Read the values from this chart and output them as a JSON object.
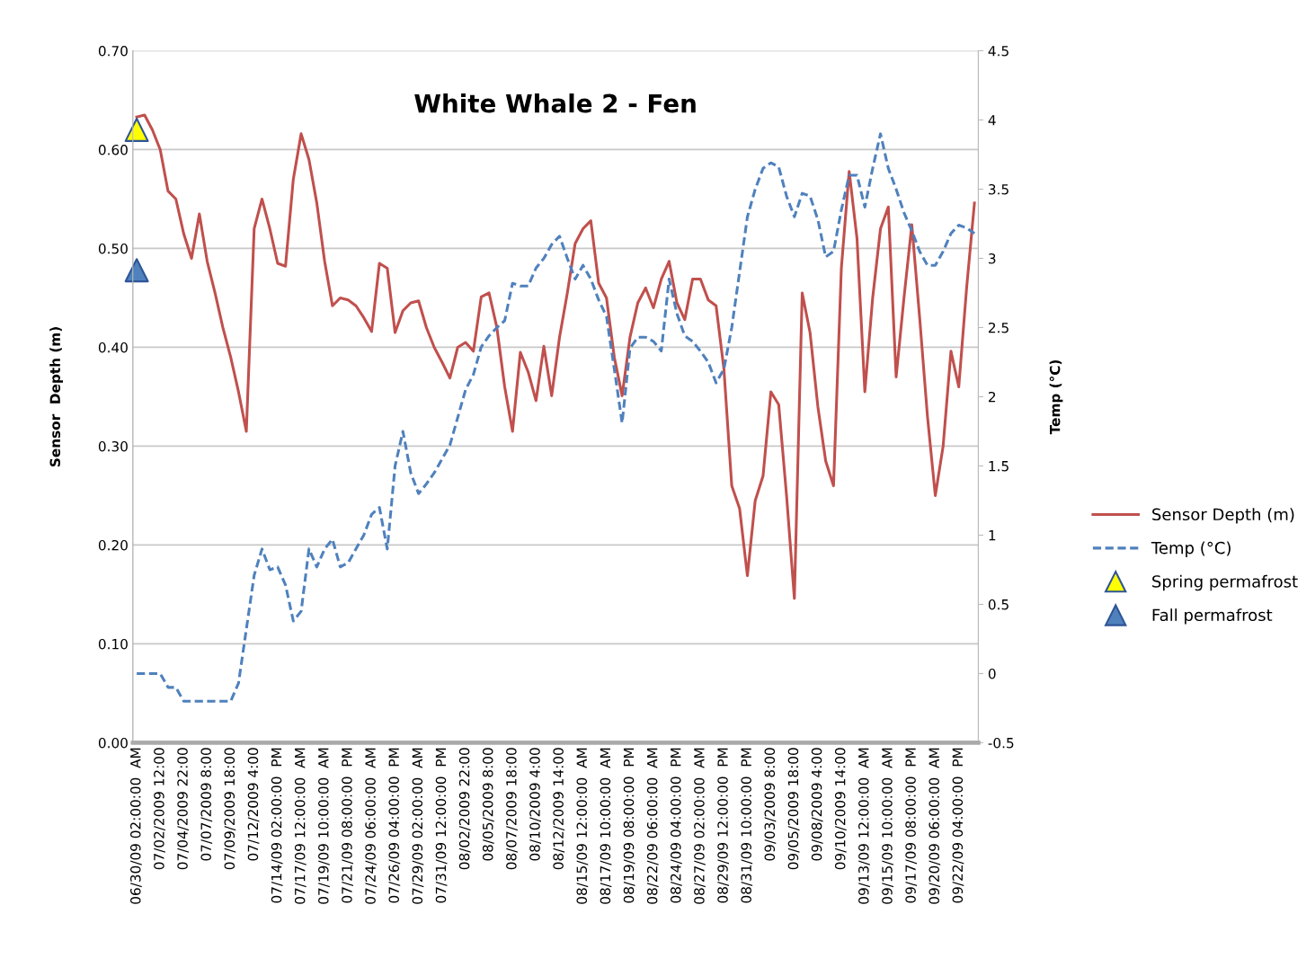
{
  "chart_data": {
    "type": "line",
    "title": "White Whale 2 - Fen",
    "ylabel": "Sensor  Depth (m)",
    "y2label": "Temp (°C)",
    "categories": [
      "06/30/09 02:00:00  AM",
      null,
      null,
      "07/02/2009 12:00",
      null,
      null,
      "07/04/2009 22:00",
      null,
      null,
      "07/07/2009 8:00",
      null,
      null,
      "07/09/2009 18:00",
      null,
      null,
      "07/12/2009 4:00",
      null,
      null,
      "07/14/09 02:00:00  PM",
      null,
      null,
      "07/17/09 12:00:00  AM",
      null,
      null,
      "07/19/09 10:00:00  AM",
      null,
      null,
      "07/21/09 08:00:00  PM",
      null,
      null,
      "07/24/09 06:00:00  AM",
      null,
      null,
      "07/26/09 04:00:00  PM",
      null,
      null,
      "07/29/09 02:00:00  AM",
      null,
      null,
      "07/31/09 12:00:00  PM",
      null,
      null,
      "08/02/2009 22:00",
      null,
      null,
      "08/05/2009 8:00",
      null,
      null,
      "08/07/2009 18:00",
      null,
      null,
      "08/10/2009 4:00",
      null,
      null,
      "08/12/2009 14:00",
      null,
      null,
      "08/15/09 12:00:00  AM",
      null,
      null,
      "08/17/09 10:00:00  AM",
      null,
      null,
      "08/19/09 08:00:00  PM",
      null,
      null,
      "08/22/09 06:00:00  AM",
      null,
      null,
      "08/24/09 04:00:00  PM",
      null,
      null,
      "08/27/09 02:00:00  AM",
      null,
      null,
      "08/29/09 12:00:00  PM",
      null,
      null,
      "08/31/09 10:00:00  PM",
      null,
      null,
      "09/03/2009 8:00",
      null,
      null,
      "09/05/2009 18:00",
      null,
      null,
      "09/08/2009 4:00",
      null,
      null,
      "09/10/2009 14:00",
      null,
      null,
      "09/13/09 12:00:00  AM",
      null,
      null,
      "09/15/09 10:00:00  AM",
      null,
      null,
      "09/17/09 08:00:00  PM",
      null,
      null,
      "09/20/09 06:00:00  AM",
      null,
      null,
      "09/22/09 04:00:00  PM",
      null,
      null
    ],
    "ylim": [
      0,
      0.7
    ],
    "yticks": [
      {
        "value": 0,
        "label": "0.00"
      },
      {
        "value": 0.1,
        "label": "0.10"
      },
      {
        "value": 0.2,
        "label": "0.20"
      },
      {
        "value": 0.3,
        "label": "0.30"
      },
      {
        "value": 0.4,
        "label": "0.40"
      },
      {
        "value": 0.5,
        "label": "0.50"
      },
      {
        "value": 0.6,
        "label": "0.60"
      },
      {
        "value": 0.7,
        "label": "0.70"
      }
    ],
    "y2lim": [
      -0.5,
      4.5
    ],
    "y2ticks": [
      -0.5,
      0,
      0.5,
      1,
      1.5,
      2,
      2.5,
      3,
      3.5,
      4,
      4.5
    ],
    "grid": "y",
    "legend": "right",
    "series": [
      {
        "name": "Sensor Depth (m)",
        "line_style": "solid",
        "marker": "none",
        "color": "#c0504d",
        "values": [
          0.633,
          0.635,
          0.62,
          0.6,
          0.558,
          0.55,
          0.515,
          0.49,
          0.535,
          0.487,
          0.455,
          0.42,
          0.39,
          0.355,
          0.315,
          0.52,
          0.55,
          0.52,
          0.485,
          0.482,
          0.57,
          0.616,
          0.59,
          0.546,
          0.487,
          0.442,
          0.45,
          0.448,
          0.442,
          0.43,
          0.416,
          0.485,
          0.48,
          0.415,
          0.437,
          0.445,
          0.447,
          0.42,
          0.4,
          0.385,
          0.369,
          0.4,
          0.405,
          0.396,
          0.451,
          0.455,
          0.42,
          0.36,
          0.315,
          0.395,
          0.375,
          0.346,
          0.401,
          0.351,
          0.41,
          0.455,
          0.505,
          0.52,
          0.528,
          0.465,
          0.45,
          0.39,
          0.351,
          0.41,
          0.445,
          0.46,
          0.44,
          0.469,
          0.487,
          0.445,
          0.428,
          0.469,
          0.469,
          0.448,
          0.442,
          0.378,
          0.26,
          0.237,
          0.169,
          0.245,
          0.27,
          0.355,
          0.342,
          0.25,
          0.146,
          0.455,
          0.415,
          0.34,
          0.285,
          0.26,
          0.48,
          0.578,
          0.51,
          0.355,
          0.45,
          0.52,
          0.542,
          0.37,
          0.45,
          0.524,
          0.43,
          0.33,
          0.25,
          0.3,
          0.396,
          0.36,
          0.46,
          0.546
        ]
      },
      {
        "name": "Temp (°C)",
        "axis": "y2",
        "line_style": "dashed",
        "marker": "none",
        "color": "#4f81bd",
        "values": [
          0,
          0,
          0,
          0,
          -0.1,
          -0.1,
          -0.2,
          -0.2,
          -0.2,
          -0.2,
          -0.2,
          -0.2,
          -0.2,
          -0.07,
          0.32,
          0.71,
          0.9,
          0.75,
          0.77,
          0.64,
          0.38,
          0.45,
          0.9,
          0.77,
          0.9,
          0.97,
          0.77,
          0.8,
          0.9,
          1.0,
          1.15,
          1.2,
          0.9,
          1.5,
          1.75,
          1.45,
          1.3,
          1.37,
          1.45,
          1.55,
          1.65,
          1.85,
          2.05,
          2.16,
          2.36,
          2.44,
          2.5,
          2.55,
          2.82,
          2.8,
          2.8,
          2.93,
          3.0,
          3.1,
          3.16,
          3.0,
          2.85,
          2.95,
          2.85,
          2.7,
          2.58,
          2.2,
          1.81,
          2.35,
          2.43,
          2.43,
          2.4,
          2.33,
          2.85,
          2.6,
          2.44,
          2.4,
          2.33,
          2.25,
          2.1,
          2.2,
          2.5,
          2.9,
          3.3,
          3.5,
          3.65,
          3.69,
          3.66,
          3.45,
          3.3,
          3.47,
          3.45,
          3.28,
          3.01,
          3.05,
          3.35,
          3.6,
          3.6,
          3.37,
          3.65,
          3.9,
          3.65,
          3.5,
          3.33,
          3.2,
          3.05,
          2.95,
          2.95,
          3.05,
          3.18,
          3.24,
          3.22,
          3.18
        ]
      },
      {
        "name": "Spring permafrost",
        "type": "scatter",
        "marker": "triangle",
        "color": "#ffff00",
        "x": [
          "06/30/09 02:00:00  AM"
        ],
        "values": [
          0.62
        ]
      },
      {
        "name": "Fall permafrost",
        "type": "scatter",
        "marker": "triangle",
        "color": "#4f81bd",
        "x": [
          "06/30/09 02:00:00  AM"
        ],
        "values": [
          0.478
        ]
      }
    ]
  }
}
